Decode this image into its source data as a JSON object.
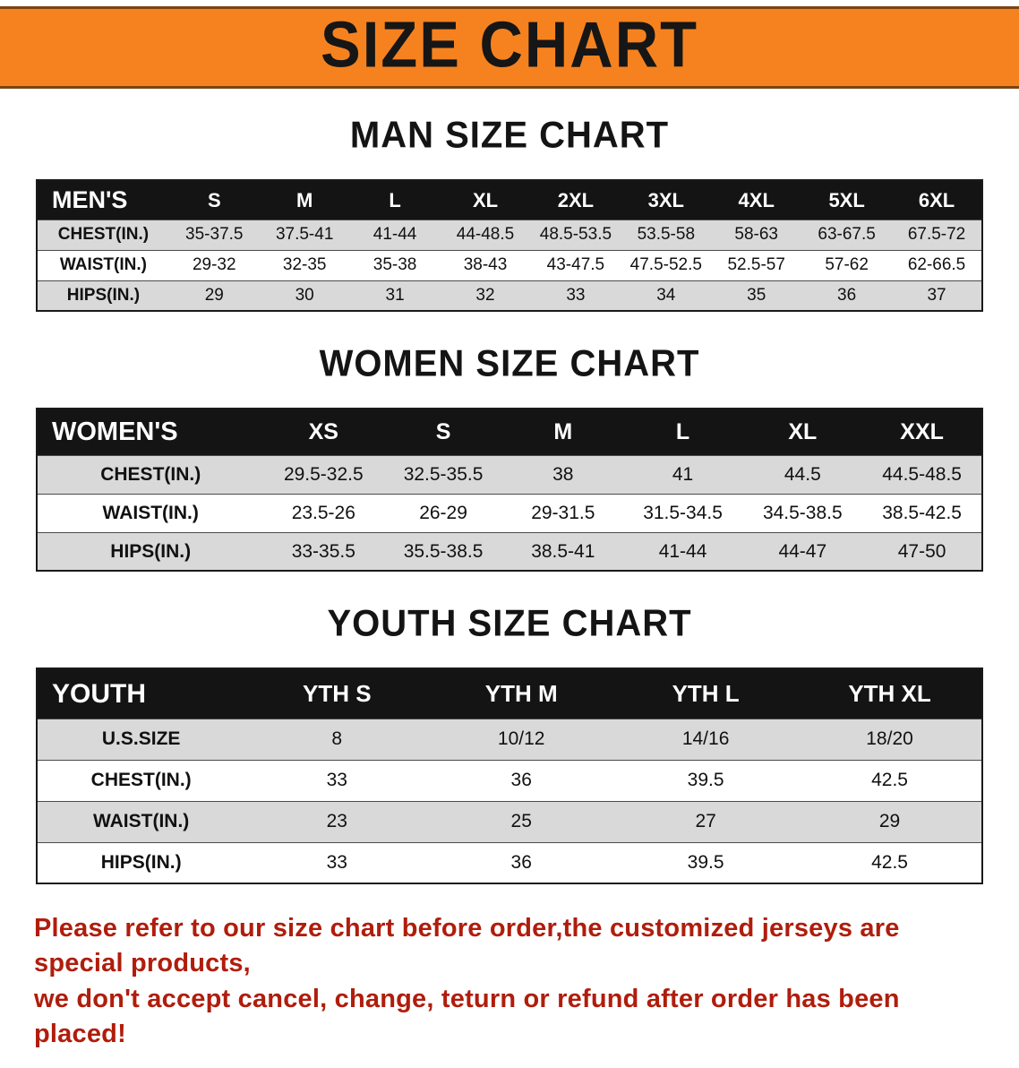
{
  "banner": {
    "title": "SIZE CHART"
  },
  "colors": {
    "banner_orange": "#f6821f",
    "banner_border_brown": "#7c4412",
    "table_header_black": "#141414",
    "row_stripe_gray": "#d9d9d9",
    "body_text_black": "#111111",
    "disclaimer_red": "#b01d0c"
  },
  "chart_data": [
    {
      "type": "table",
      "title": "MAN SIZE CHART",
      "header_label": "MEN'S",
      "columns": [
        "S",
        "M",
        "L",
        "XL",
        "2XL",
        "3XL",
        "4XL",
        "5XL",
        "6XL"
      ],
      "rows": [
        {
          "label": "CHEST(IN.)",
          "values": [
            "35-37.5",
            "37.5-41",
            "41-44",
            "44-48.5",
            "48.5-53.5",
            "53.5-58",
            "58-63",
            "63-67.5",
            "67.5-72"
          ]
        },
        {
          "label": "WAIST(IN.)",
          "values": [
            "29-32",
            "32-35",
            "35-38",
            "38-43",
            "43-47.5",
            "47.5-52.5",
            "52.5-57",
            "57-62",
            "62-66.5"
          ]
        },
        {
          "label": "HIPS(IN.)",
          "values": [
            "29",
            "30",
            "31",
            "32",
            "33",
            "34",
            "35",
            "36",
            "37"
          ]
        }
      ]
    },
    {
      "type": "table",
      "title": "WOMEN SIZE CHART",
      "header_label": "WOMEN'S",
      "columns": [
        "XS",
        "S",
        "M",
        "L",
        "XL",
        "XXL"
      ],
      "rows": [
        {
          "label": "CHEST(IN.)",
          "values": [
            "29.5-32.5",
            "32.5-35.5",
            "38",
            "41",
            "44.5",
            "44.5-48.5"
          ]
        },
        {
          "label": "WAIST(IN.)",
          "values": [
            "23.5-26",
            "26-29",
            "29-31.5",
            "31.5-34.5",
            "34.5-38.5",
            "38.5-42.5"
          ]
        },
        {
          "label": "HIPS(IN.)",
          "values": [
            "33-35.5",
            "35.5-38.5",
            "38.5-41",
            "41-44",
            "44-47",
            "47-50"
          ]
        }
      ]
    },
    {
      "type": "table",
      "title": "YOUTH SIZE CHART",
      "header_label": "YOUTH",
      "columns": [
        "YTH S",
        "YTH M",
        "YTH L",
        "YTH XL"
      ],
      "rows": [
        {
          "label": "U.S.SIZE",
          "values": [
            "8",
            "10/12",
            "14/16",
            "18/20"
          ]
        },
        {
          "label": "CHEST(IN.)",
          "values": [
            "33",
            "36",
            "39.5",
            "42.5"
          ]
        },
        {
          "label": "WAIST(IN.)",
          "values": [
            "23",
            "25",
            "27",
            "29"
          ]
        },
        {
          "label": "HIPS(IN.)",
          "values": [
            "33",
            "36",
            "39.5",
            "42.5"
          ]
        }
      ]
    }
  ],
  "footer": {
    "lines": [
      "Please refer to our size chart before order,the customized jerseys are special products,",
      "we don't accept cancel, change, teturn or refund after order has been placed!"
    ]
  }
}
